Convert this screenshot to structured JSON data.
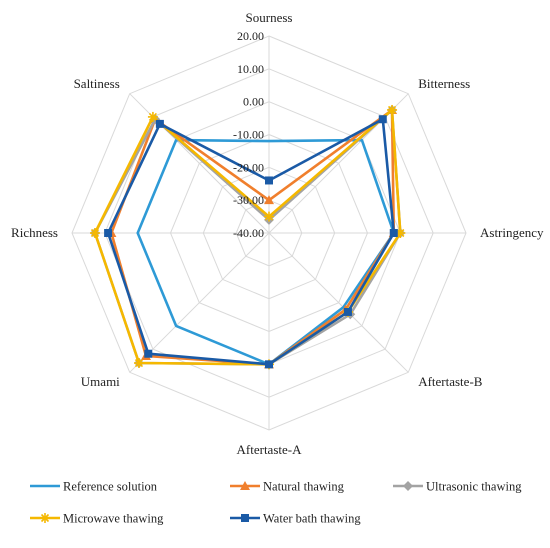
{
  "chart_data": {
    "type": "radar",
    "axes": [
      "Sourness",
      "Bitterness",
      "Astringency",
      "Aftertaste-B",
      "Aftertaste-A",
      "Umami",
      "Richness",
      "Saltiness"
    ],
    "rlim": [
      -40,
      20
    ],
    "ticks": [
      20,
      10,
      0,
      -10,
      -20,
      -30,
      -40
    ],
    "tick_labels": [
      "20.00",
      "10.00",
      "0.00",
      "-10.00",
      "-20.00",
      "-30.00",
      "-40.00"
    ],
    "grid": true,
    "grid_shape": "octagon",
    "legend_position": "bottom",
    "series": [
      {
        "name": "Reference solution",
        "color": "#2e9ad6",
        "marker": "none",
        "values": [
          -12,
          0,
          -2,
          -8,
          0,
          0,
          0,
          0
        ]
      },
      {
        "name": "Natural thawing",
        "color": "#f07f2d",
        "marker": "triangle",
        "values": [
          -30,
          13,
          -2,
          -7,
          0,
          13,
          8,
          9
        ]
      },
      {
        "name": "Ultrasonic thawing",
        "color": "#a3a3a3",
        "marker": "diamond",
        "values": [
          -36,
          13,
          0,
          -5,
          0,
          16,
          13,
          9
        ]
      },
      {
        "name": "Microwave thawing",
        "color": "#f5b800",
        "marker": "asterisk",
        "values": [
          -35,
          13,
          0,
          -6,
          0,
          16,
          13,
          10
        ]
      },
      {
        "name": "Water bath thawing",
        "color": "#1a5aa6",
        "marker": "square",
        "values": [
          -24,
          9,
          -2,
          -6,
          0,
          12,
          9,
          7
        ]
      }
    ]
  }
}
